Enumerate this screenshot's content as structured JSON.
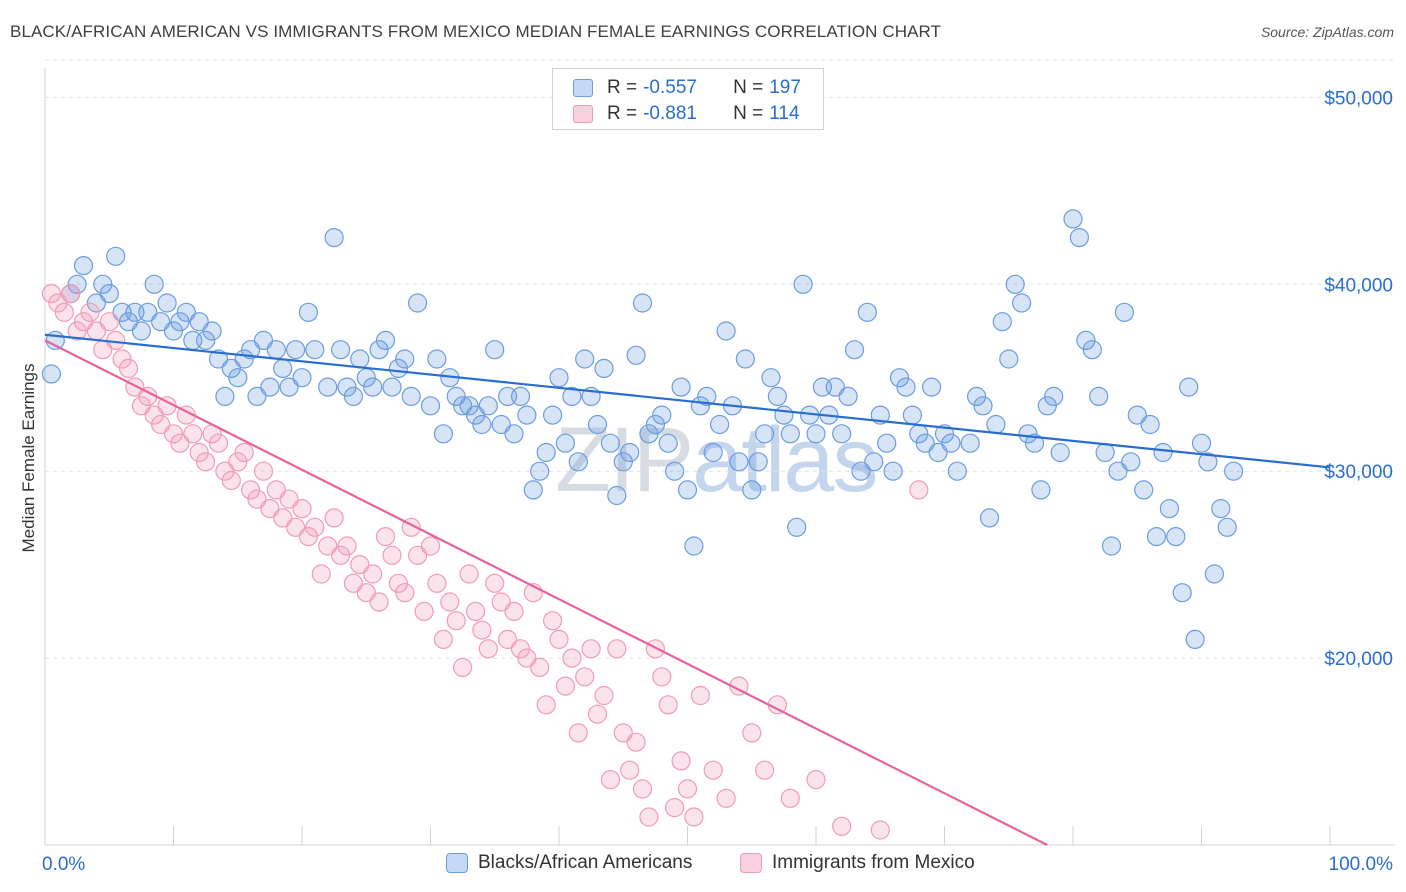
{
  "title": "BLACK/AFRICAN AMERICAN VS IMMIGRANTS FROM MEXICO MEDIAN FEMALE EARNINGS CORRELATION CHART",
  "source": "Source: ZipAtlas.com",
  "watermark": {
    "bold": "ZIP",
    "light": "atlas"
  },
  "legend": {
    "r_label": "R =",
    "n_label": "N =",
    "rows": [
      {
        "r": "-0.557",
        "n": "197",
        "color": "#6b9de0"
      },
      {
        "r": "-0.881",
        "n": "114",
        "color": "#f29bb6"
      }
    ]
  },
  "chart_data": {
    "type": "scatter",
    "ylabel": "Median Female Earnings",
    "xlim": [
      0,
      100
    ],
    "ylim": [
      10000,
      52000
    ],
    "x_tick_labels": [
      "0.0%",
      "100.0%"
    ],
    "y_ticks": [
      20000,
      30000,
      40000,
      50000
    ],
    "y_tick_labels": [
      "$20,000",
      "$30,000",
      "$40,000",
      "$50,000"
    ],
    "grid": "horizontal dashed",
    "series": [
      {
        "name": "Blacks/African Americans",
        "color": "#6b9de0",
        "trend": [
          [
            0,
            37300
          ],
          [
            100,
            30200
          ]
        ],
        "points": [
          [
            0.5,
            35200
          ],
          [
            0.8,
            37000
          ],
          [
            2,
            39500
          ],
          [
            2.5,
            40000
          ],
          [
            3,
            41000
          ],
          [
            4,
            39000
          ],
          [
            4.5,
            40000
          ],
          [
            5,
            39500
          ],
          [
            5.5,
            41500
          ],
          [
            6,
            38500
          ],
          [
            6.5,
            38000
          ],
          [
            7,
            38500
          ],
          [
            7.5,
            37500
          ],
          [
            8,
            38500
          ],
          [
            8.5,
            40000
          ],
          [
            9,
            38000
          ],
          [
            9.5,
            39000
          ],
          [
            10,
            37500
          ],
          [
            10.5,
            38000
          ],
          [
            11,
            38500
          ],
          [
            11.5,
            37000
          ],
          [
            12,
            38000
          ],
          [
            12.5,
            37000
          ],
          [
            13,
            37500
          ],
          [
            13.5,
            36000
          ],
          [
            14,
            34000
          ],
          [
            14.5,
            35500
          ],
          [
            15,
            35000
          ],
          [
            15.5,
            36000
          ],
          [
            16,
            36500
          ],
          [
            16.5,
            34000
          ],
          [
            17,
            37000
          ],
          [
            17.5,
            34500
          ],
          [
            18,
            36500
          ],
          [
            18.5,
            35500
          ],
          [
            19,
            34500
          ],
          [
            19.5,
            36500
          ],
          [
            20,
            35000
          ],
          [
            20.5,
            38500
          ],
          [
            21,
            36500
          ],
          [
            22,
            34500
          ],
          [
            22.5,
            42500
          ],
          [
            23,
            36500
          ],
          [
            23.5,
            34500
          ],
          [
            24,
            34000
          ],
          [
            24.5,
            36000
          ],
          [
            25,
            35000
          ],
          [
            25.5,
            34500
          ],
          [
            26,
            36500
          ],
          [
            26.5,
            37000
          ],
          [
            27,
            34500
          ],
          [
            27.5,
            35500
          ],
          [
            28,
            36000
          ],
          [
            28.5,
            34000
          ],
          [
            29,
            39000
          ],
          [
            30,
            33500
          ],
          [
            30.5,
            36000
          ],
          [
            31,
            32000
          ],
          [
            31.5,
            35000
          ],
          [
            32,
            34000
          ],
          [
            32.5,
            33500
          ],
          [
            33,
            33500
          ],
          [
            33.5,
            33000
          ],
          [
            34,
            32500
          ],
          [
            34.5,
            33500
          ],
          [
            35,
            36500
          ],
          [
            35.5,
            32500
          ],
          [
            36,
            34000
          ],
          [
            36.5,
            32000
          ],
          [
            37,
            34000
          ],
          [
            37.5,
            33000
          ],
          [
            38,
            29000
          ],
          [
            38.5,
            30000
          ],
          [
            39,
            31000
          ],
          [
            39.5,
            33000
          ],
          [
            40,
            35000
          ],
          [
            40.5,
            31500
          ],
          [
            41,
            34000
          ],
          [
            41.5,
            30500
          ],
          [
            42,
            36000
          ],
          [
            42.5,
            34000
          ],
          [
            43,
            32500
          ],
          [
            43.5,
            35500
          ],
          [
            44,
            31500
          ],
          [
            44.5,
            28700
          ],
          [
            45,
            30500
          ],
          [
            45.5,
            31000
          ],
          [
            46,
            36200
          ],
          [
            46.5,
            39000
          ],
          [
            47,
            32000
          ],
          [
            47.5,
            32500
          ],
          [
            48,
            33000
          ],
          [
            48.5,
            31500
          ],
          [
            49,
            30000
          ],
          [
            49.5,
            34500
          ],
          [
            50,
            29000
          ],
          [
            50.5,
            26000
          ],
          [
            51,
            33500
          ],
          [
            51.5,
            34000
          ],
          [
            52,
            31000
          ],
          [
            52.5,
            32500
          ],
          [
            53,
            37500
          ],
          [
            53.5,
            33500
          ],
          [
            54,
            30500
          ],
          [
            54.5,
            36000
          ],
          [
            55,
            29000
          ],
          [
            55.5,
            30500
          ],
          [
            56,
            32000
          ],
          [
            56.5,
            35000
          ],
          [
            57,
            34000
          ],
          [
            57.5,
            33000
          ],
          [
            58,
            32000
          ],
          [
            58.5,
            27000
          ],
          [
            59,
            40000
          ],
          [
            59.5,
            33000
          ],
          [
            60,
            32000
          ],
          [
            60.5,
            34500
          ],
          [
            61,
            33000
          ],
          [
            61.5,
            34500
          ],
          [
            62,
            32000
          ],
          [
            62.5,
            34000
          ],
          [
            63,
            36500
          ],
          [
            63.5,
            30000
          ],
          [
            64,
            38500
          ],
          [
            64.5,
            30500
          ],
          [
            65,
            33000
          ],
          [
            65.5,
            31500
          ],
          [
            66,
            30000
          ],
          [
            66.5,
            35000
          ],
          [
            67,
            34500
          ],
          [
            67.5,
            33000
          ],
          [
            68,
            32000
          ],
          [
            68.5,
            31500
          ],
          [
            69,
            34500
          ],
          [
            69.5,
            31000
          ],
          [
            70,
            32000
          ],
          [
            70.5,
            31500
          ],
          [
            71,
            30000
          ],
          [
            72,
            31500
          ],
          [
            72.5,
            34000
          ],
          [
            73,
            33500
          ],
          [
            73.5,
            27500
          ],
          [
            74,
            32500
          ],
          [
            74.5,
            38000
          ],
          [
            75,
            36000
          ],
          [
            75.5,
            40000
          ],
          [
            76,
            39000
          ],
          [
            76.5,
            32000
          ],
          [
            77,
            31500
          ],
          [
            77.5,
            29000
          ],
          [
            78,
            33500
          ],
          [
            78.5,
            34000
          ],
          [
            79,
            31000
          ],
          [
            80,
            43500
          ],
          [
            80.5,
            42500
          ],
          [
            81,
            37000
          ],
          [
            81.5,
            36500
          ],
          [
            82,
            34000
          ],
          [
            82.5,
            31000
          ],
          [
            83,
            26000
          ],
          [
            83.5,
            30000
          ],
          [
            84,
            38500
          ],
          [
            84.5,
            30500
          ],
          [
            85,
            33000
          ],
          [
            85.5,
            29000
          ],
          [
            86,
            32500
          ],
          [
            86.5,
            26500
          ],
          [
            87,
            31000
          ],
          [
            87.5,
            28000
          ],
          [
            88,
            26500
          ],
          [
            88.5,
            23500
          ],
          [
            89,
            34500
          ],
          [
            89.5,
            21000
          ],
          [
            90,
            31500
          ],
          [
            90.5,
            30500
          ],
          [
            91,
            24500
          ],
          [
            91.5,
            28000
          ],
          [
            92,
            27000
          ],
          [
            92.5,
            30000
          ]
        ]
      },
      {
        "name": "Immigrants from Mexico",
        "color": "#f29bb6",
        "trend": [
          [
            0,
            37000
          ],
          [
            78,
            10000
          ]
        ],
        "points": [
          [
            0.5,
            39500
          ],
          [
            1,
            39000
          ],
          [
            1.5,
            38500
          ],
          [
            2,
            39500
          ],
          [
            2.5,
            37500
          ],
          [
            3,
            38000
          ],
          [
            3.5,
            38500
          ],
          [
            4,
            37500
          ],
          [
            4.5,
            36500
          ],
          [
            5,
            38000
          ],
          [
            5.5,
            37000
          ],
          [
            6,
            36000
          ],
          [
            6.5,
            35500
          ],
          [
            7,
            34500
          ],
          [
            7.5,
            33500
          ],
          [
            8,
            34000
          ],
          [
            8.5,
            33000
          ],
          [
            9,
            32500
          ],
          [
            9.5,
            33500
          ],
          [
            10,
            32000
          ],
          [
            10.5,
            31500
          ],
          [
            11,
            33000
          ],
          [
            11.5,
            32000
          ],
          [
            12,
            31000
          ],
          [
            12.5,
            30500
          ],
          [
            13,
            32000
          ],
          [
            13.5,
            31500
          ],
          [
            14,
            30000
          ],
          [
            14.5,
            29500
          ],
          [
            15,
            30500
          ],
          [
            15.5,
            31000
          ],
          [
            16,
            29000
          ],
          [
            16.5,
            28500
          ],
          [
            17,
            30000
          ],
          [
            17.5,
            28000
          ],
          [
            18,
            29000
          ],
          [
            18.5,
            27500
          ],
          [
            19,
            28500
          ],
          [
            19.5,
            27000
          ],
          [
            20,
            28000
          ],
          [
            20.5,
            26500
          ],
          [
            21,
            27000
          ],
          [
            21.5,
            24500
          ],
          [
            22,
            26000
          ],
          [
            22.5,
            27500
          ],
          [
            23,
            25500
          ],
          [
            23.5,
            26000
          ],
          [
            24,
            24000
          ],
          [
            24.5,
            25000
          ],
          [
            25,
            23500
          ],
          [
            25.5,
            24500
          ],
          [
            26,
            23000
          ],
          [
            26.5,
            26500
          ],
          [
            27,
            25500
          ],
          [
            27.5,
            24000
          ],
          [
            28,
            23500
          ],
          [
            28.5,
            27000
          ],
          [
            29,
            25500
          ],
          [
            29.5,
            22500
          ],
          [
            30,
            26000
          ],
          [
            30.5,
            24000
          ],
          [
            31,
            21000
          ],
          [
            31.5,
            23000
          ],
          [
            32,
            22000
          ],
          [
            32.5,
            19500
          ],
          [
            33,
            24500
          ],
          [
            33.5,
            22500
          ],
          [
            34,
            21500
          ],
          [
            34.5,
            20500
          ],
          [
            35,
            24000
          ],
          [
            35.5,
            23000
          ],
          [
            36,
            21000
          ],
          [
            36.5,
            22500
          ],
          [
            37,
            20500
          ],
          [
            37.5,
            20000
          ],
          [
            38,
            23500
          ],
          [
            38.5,
            19500
          ],
          [
            39,
            17500
          ],
          [
            39.5,
            22000
          ],
          [
            40,
            21000
          ],
          [
            40.5,
            18500
          ],
          [
            41,
            20000
          ],
          [
            41.5,
            16000
          ],
          [
            42,
            19000
          ],
          [
            42.5,
            20500
          ],
          [
            43,
            17000
          ],
          [
            43.5,
            18000
          ],
          [
            44,
            13500
          ],
          [
            44.5,
            20500
          ],
          [
            45,
            16000
          ],
          [
            45.5,
            14000
          ],
          [
            46,
            15500
          ],
          [
            46.5,
            13000
          ],
          [
            47,
            11500
          ],
          [
            47.5,
            20500
          ],
          [
            48,
            19000
          ],
          [
            48.5,
            17500
          ],
          [
            49,
            12000
          ],
          [
            49.5,
            14500
          ],
          [
            50,
            13000
          ],
          [
            50.5,
            11500
          ],
          [
            51,
            18000
          ],
          [
            52,
            14000
          ],
          [
            53,
            12500
          ],
          [
            54,
            18500
          ],
          [
            55,
            16000
          ],
          [
            56,
            14000
          ],
          [
            57,
            17500
          ],
          [
            58,
            12500
          ],
          [
            60,
            13500
          ],
          [
            62,
            11000
          ],
          [
            65,
            10800
          ],
          [
            68,
            29000
          ]
        ]
      }
    ]
  }
}
